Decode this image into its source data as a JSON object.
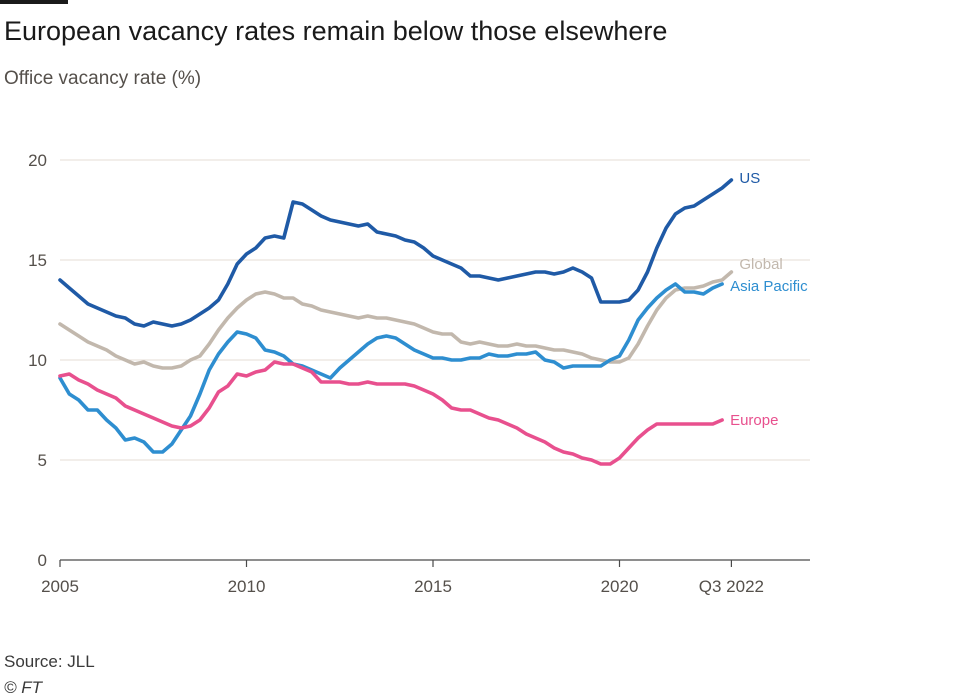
{
  "header": {
    "title": "European vacancy rates remain below those elsewhere",
    "subtitle": "Office vacancy rate (%)"
  },
  "footer": {
    "source": "Source: JLL",
    "credit": "© FT"
  },
  "chart_data": {
    "type": "line",
    "title": "European vacancy rates remain below those elsewhere",
    "subtitle": "Office vacancy rate (%)",
    "xlabel": "",
    "ylabel": "",
    "xlim": [
      2005,
      2025.25
    ],
    "ylim": [
      0,
      20
    ],
    "grid": true,
    "legend": "direct labels at line ends",
    "y_ticks": [
      0,
      5,
      10,
      15,
      20
    ],
    "x_ticks": [
      {
        "value": 2005,
        "label": "2005"
      },
      {
        "value": 2010,
        "label": "2010"
      },
      {
        "value": 2015,
        "label": "2015"
      },
      {
        "value": 2020,
        "label": "2020"
      },
      {
        "value": 2023,
        "label": "Q3 2022"
      }
    ],
    "series": [
      {
        "name": "US",
        "color": "#1f5aa6",
        "points": [
          [
            2005.0,
            14.0
          ],
          [
            2005.25,
            13.6
          ],
          [
            2005.5,
            13.2
          ],
          [
            2005.75,
            12.8
          ],
          [
            2006.0,
            12.6
          ],
          [
            2006.25,
            12.4
          ],
          [
            2006.5,
            12.2
          ],
          [
            2006.75,
            12.1
          ],
          [
            2007.0,
            11.8
          ],
          [
            2007.25,
            11.7
          ],
          [
            2007.5,
            11.9
          ],
          [
            2007.75,
            11.8
          ],
          [
            2008.0,
            11.7
          ],
          [
            2008.25,
            11.8
          ],
          [
            2008.5,
            12.0
          ],
          [
            2008.75,
            12.3
          ],
          [
            2009.0,
            12.6
          ],
          [
            2009.25,
            13.0
          ],
          [
            2009.5,
            13.8
          ],
          [
            2009.75,
            14.8
          ],
          [
            2010.0,
            15.3
          ],
          [
            2010.25,
            15.6
          ],
          [
            2010.5,
            16.1
          ],
          [
            2010.75,
            16.2
          ],
          [
            2011.0,
            16.1
          ],
          [
            2011.25,
            17.9
          ],
          [
            2011.5,
            17.8
          ],
          [
            2011.75,
            17.5
          ],
          [
            2012.0,
            17.2
          ],
          [
            2012.25,
            17.0
          ],
          [
            2012.5,
            16.9
          ],
          [
            2012.75,
            16.8
          ],
          [
            2013.0,
            16.7
          ],
          [
            2013.25,
            16.8
          ],
          [
            2013.5,
            16.4
          ],
          [
            2013.75,
            16.3
          ],
          [
            2014.0,
            16.2
          ],
          [
            2014.25,
            16.0
          ],
          [
            2014.5,
            15.9
          ],
          [
            2014.75,
            15.6
          ],
          [
            2015.0,
            15.2
          ],
          [
            2015.25,
            15.0
          ],
          [
            2015.5,
            14.8
          ],
          [
            2015.75,
            14.6
          ],
          [
            2016.0,
            14.2
          ],
          [
            2016.25,
            14.2
          ],
          [
            2016.5,
            14.1
          ],
          [
            2016.75,
            14.0
          ],
          [
            2017.0,
            14.1
          ],
          [
            2017.25,
            14.2
          ],
          [
            2017.5,
            14.3
          ],
          [
            2017.75,
            14.4
          ],
          [
            2018.0,
            14.4
          ],
          [
            2018.25,
            14.3
          ],
          [
            2018.5,
            14.4
          ],
          [
            2018.75,
            14.6
          ],
          [
            2019.0,
            14.4
          ],
          [
            2019.25,
            14.1
          ],
          [
            2019.5,
            12.9
          ],
          [
            2019.75,
            12.9
          ],
          [
            2020.0,
            12.9
          ],
          [
            2020.25,
            13.0
          ],
          [
            2020.5,
            13.5
          ],
          [
            2020.75,
            14.4
          ],
          [
            2021.0,
            15.6
          ],
          [
            2021.25,
            16.6
          ],
          [
            2021.5,
            17.3
          ],
          [
            2021.75,
            17.6
          ],
          [
            2022.0,
            17.7
          ],
          [
            2022.25,
            18.0
          ],
          [
            2022.5,
            18.3
          ],
          [
            2022.75,
            18.6
          ],
          [
            2023.0,
            19.0
          ]
        ]
      },
      {
        "name": "Global",
        "color": "#c2b8ad",
        "points": [
          [
            2005.0,
            11.8
          ],
          [
            2005.25,
            11.5
          ],
          [
            2005.5,
            11.2
          ],
          [
            2005.75,
            10.9
          ],
          [
            2006.0,
            10.7
          ],
          [
            2006.25,
            10.5
          ],
          [
            2006.5,
            10.2
          ],
          [
            2006.75,
            10.0
          ],
          [
            2007.0,
            9.8
          ],
          [
            2007.25,
            9.9
          ],
          [
            2007.5,
            9.7
          ],
          [
            2007.75,
            9.6
          ],
          [
            2008.0,
            9.6
          ],
          [
            2008.25,
            9.7
          ],
          [
            2008.5,
            10.0
          ],
          [
            2008.75,
            10.2
          ],
          [
            2009.0,
            10.8
          ],
          [
            2009.25,
            11.5
          ],
          [
            2009.5,
            12.1
          ],
          [
            2009.75,
            12.6
          ],
          [
            2010.0,
            13.0
          ],
          [
            2010.25,
            13.3
          ],
          [
            2010.5,
            13.4
          ],
          [
            2010.75,
            13.3
          ],
          [
            2011.0,
            13.1
          ],
          [
            2011.25,
            13.1
          ],
          [
            2011.5,
            12.8
          ],
          [
            2011.75,
            12.7
          ],
          [
            2012.0,
            12.5
          ],
          [
            2012.25,
            12.4
          ],
          [
            2012.5,
            12.3
          ],
          [
            2012.75,
            12.2
          ],
          [
            2013.0,
            12.1
          ],
          [
            2013.25,
            12.2
          ],
          [
            2013.5,
            12.1
          ],
          [
            2013.75,
            12.1
          ],
          [
            2014.0,
            12.0
          ],
          [
            2014.25,
            11.9
          ],
          [
            2014.5,
            11.8
          ],
          [
            2014.75,
            11.6
          ],
          [
            2015.0,
            11.4
          ],
          [
            2015.25,
            11.3
          ],
          [
            2015.5,
            11.3
          ],
          [
            2015.75,
            10.9
          ],
          [
            2016.0,
            10.8
          ],
          [
            2016.25,
            10.9
          ],
          [
            2016.5,
            10.8
          ],
          [
            2016.75,
            10.7
          ],
          [
            2017.0,
            10.7
          ],
          [
            2017.25,
            10.8
          ],
          [
            2017.5,
            10.7
          ],
          [
            2017.75,
            10.7
          ],
          [
            2018.0,
            10.6
          ],
          [
            2018.25,
            10.5
          ],
          [
            2018.5,
            10.5
          ],
          [
            2018.75,
            10.4
          ],
          [
            2019.0,
            10.3
          ],
          [
            2019.25,
            10.1
          ],
          [
            2019.5,
            10.0
          ],
          [
            2019.75,
            9.9
          ],
          [
            2020.0,
            9.9
          ],
          [
            2020.25,
            10.1
          ],
          [
            2020.5,
            10.8
          ],
          [
            2020.75,
            11.7
          ],
          [
            2021.0,
            12.5
          ],
          [
            2021.25,
            13.1
          ],
          [
            2021.5,
            13.5
          ],
          [
            2021.75,
            13.6
          ],
          [
            2022.0,
            13.6
          ],
          [
            2022.25,
            13.7
          ],
          [
            2022.5,
            13.9
          ],
          [
            2022.75,
            14.0
          ],
          [
            2023.0,
            14.4
          ]
        ]
      },
      {
        "name": "Asia Pacific",
        "color": "#2e8ed0",
        "points": [
          [
            2005.0,
            9.1
          ],
          [
            2005.25,
            8.3
          ],
          [
            2005.5,
            8.0
          ],
          [
            2005.75,
            7.5
          ],
          [
            2006.0,
            7.5
          ],
          [
            2006.25,
            7.0
          ],
          [
            2006.5,
            6.6
          ],
          [
            2006.75,
            6.0
          ],
          [
            2007.0,
            6.1
          ],
          [
            2007.25,
            5.9
          ],
          [
            2007.5,
            5.4
          ],
          [
            2007.75,
            5.4
          ],
          [
            2008.0,
            5.8
          ],
          [
            2008.25,
            6.5
          ],
          [
            2008.5,
            7.2
          ],
          [
            2008.75,
            8.3
          ],
          [
            2009.0,
            9.5
          ],
          [
            2009.25,
            10.3
          ],
          [
            2009.5,
            10.9
          ],
          [
            2009.75,
            11.4
          ],
          [
            2010.0,
            11.3
          ],
          [
            2010.25,
            11.1
          ],
          [
            2010.5,
            10.5
          ],
          [
            2010.75,
            10.4
          ],
          [
            2011.0,
            10.2
          ],
          [
            2011.25,
            9.8
          ],
          [
            2011.5,
            9.7
          ],
          [
            2011.75,
            9.5
          ],
          [
            2012.0,
            9.3
          ],
          [
            2012.25,
            9.1
          ],
          [
            2012.5,
            9.6
          ],
          [
            2012.75,
            10.0
          ],
          [
            2013.0,
            10.4
          ],
          [
            2013.25,
            10.8
          ],
          [
            2013.5,
            11.1
          ],
          [
            2013.75,
            11.2
          ],
          [
            2014.0,
            11.1
          ],
          [
            2014.25,
            10.8
          ],
          [
            2014.5,
            10.5
          ],
          [
            2014.75,
            10.3
          ],
          [
            2015.0,
            10.1
          ],
          [
            2015.25,
            10.1
          ],
          [
            2015.5,
            10.0
          ],
          [
            2015.75,
            10.0
          ],
          [
            2016.0,
            10.1
          ],
          [
            2016.25,
            10.1
          ],
          [
            2016.5,
            10.3
          ],
          [
            2016.75,
            10.2
          ],
          [
            2017.0,
            10.2
          ],
          [
            2017.25,
            10.3
          ],
          [
            2017.5,
            10.3
          ],
          [
            2017.75,
            10.4
          ],
          [
            2018.0,
            10.0
          ],
          [
            2018.25,
            9.9
          ],
          [
            2018.5,
            9.6
          ],
          [
            2018.75,
            9.7
          ],
          [
            2019.0,
            9.7
          ],
          [
            2019.25,
            9.7
          ],
          [
            2019.5,
            9.7
          ],
          [
            2019.75,
            10.0
          ],
          [
            2020.0,
            10.2
          ],
          [
            2020.25,
            11.0
          ],
          [
            2020.5,
            12.0
          ],
          [
            2020.75,
            12.6
          ],
          [
            2021.0,
            13.1
          ],
          [
            2021.25,
            13.5
          ],
          [
            2021.5,
            13.8
          ],
          [
            2021.75,
            13.4
          ],
          [
            2022.0,
            13.4
          ],
          [
            2022.25,
            13.3
          ],
          [
            2022.5,
            13.6
          ],
          [
            2022.75,
            13.8
          ]
        ]
      },
      {
        "name": "Europe",
        "color": "#e8508e",
        "points": [
          [
            2005.0,
            9.2
          ],
          [
            2005.25,
            9.3
          ],
          [
            2005.5,
            9.0
          ],
          [
            2005.75,
            8.8
          ],
          [
            2006.0,
            8.5
          ],
          [
            2006.25,
            8.3
          ],
          [
            2006.5,
            8.1
          ],
          [
            2006.75,
            7.7
          ],
          [
            2007.0,
            7.5
          ],
          [
            2007.25,
            7.3
          ],
          [
            2007.5,
            7.1
          ],
          [
            2007.75,
            6.9
          ],
          [
            2008.0,
            6.7
          ],
          [
            2008.25,
            6.6
          ],
          [
            2008.5,
            6.7
          ],
          [
            2008.75,
            7.0
          ],
          [
            2009.0,
            7.6
          ],
          [
            2009.25,
            8.4
          ],
          [
            2009.5,
            8.7
          ],
          [
            2009.75,
            9.3
          ],
          [
            2010.0,
            9.2
          ],
          [
            2010.25,
            9.4
          ],
          [
            2010.5,
            9.5
          ],
          [
            2010.75,
            9.9
          ],
          [
            2011.0,
            9.8
          ],
          [
            2011.25,
            9.8
          ],
          [
            2011.5,
            9.6
          ],
          [
            2011.75,
            9.4
          ],
          [
            2012.0,
            8.9
          ],
          [
            2012.25,
            8.9
          ],
          [
            2012.5,
            8.9
          ],
          [
            2012.75,
            8.8
          ],
          [
            2013.0,
            8.8
          ],
          [
            2013.25,
            8.9
          ],
          [
            2013.5,
            8.8
          ],
          [
            2013.75,
            8.8
          ],
          [
            2014.0,
            8.8
          ],
          [
            2014.25,
            8.8
          ],
          [
            2014.5,
            8.7
          ],
          [
            2014.75,
            8.5
          ],
          [
            2015.0,
            8.3
          ],
          [
            2015.25,
            8.0
          ],
          [
            2015.5,
            7.6
          ],
          [
            2015.75,
            7.5
          ],
          [
            2016.0,
            7.5
          ],
          [
            2016.25,
            7.3
          ],
          [
            2016.5,
            7.1
          ],
          [
            2016.75,
            7.0
          ],
          [
            2017.0,
            6.8
          ],
          [
            2017.25,
            6.6
          ],
          [
            2017.5,
            6.3
          ],
          [
            2017.75,
            6.1
          ],
          [
            2018.0,
            5.9
          ],
          [
            2018.25,
            5.6
          ],
          [
            2018.5,
            5.4
          ],
          [
            2018.75,
            5.3
          ],
          [
            2019.0,
            5.1
          ],
          [
            2019.25,
            5.0
          ],
          [
            2019.5,
            4.8
          ],
          [
            2019.75,
            4.8
          ],
          [
            2020.0,
            5.1
          ],
          [
            2020.25,
            5.6
          ],
          [
            2020.5,
            6.1
          ],
          [
            2020.75,
            6.5
          ],
          [
            2021.0,
            6.8
          ],
          [
            2021.25,
            6.8
          ],
          [
            2021.5,
            6.8
          ],
          [
            2021.75,
            6.8
          ],
          [
            2022.0,
            6.8
          ],
          [
            2022.25,
            6.8
          ],
          [
            2022.5,
            6.8
          ],
          [
            2022.75,
            7.0
          ]
        ]
      }
    ]
  }
}
